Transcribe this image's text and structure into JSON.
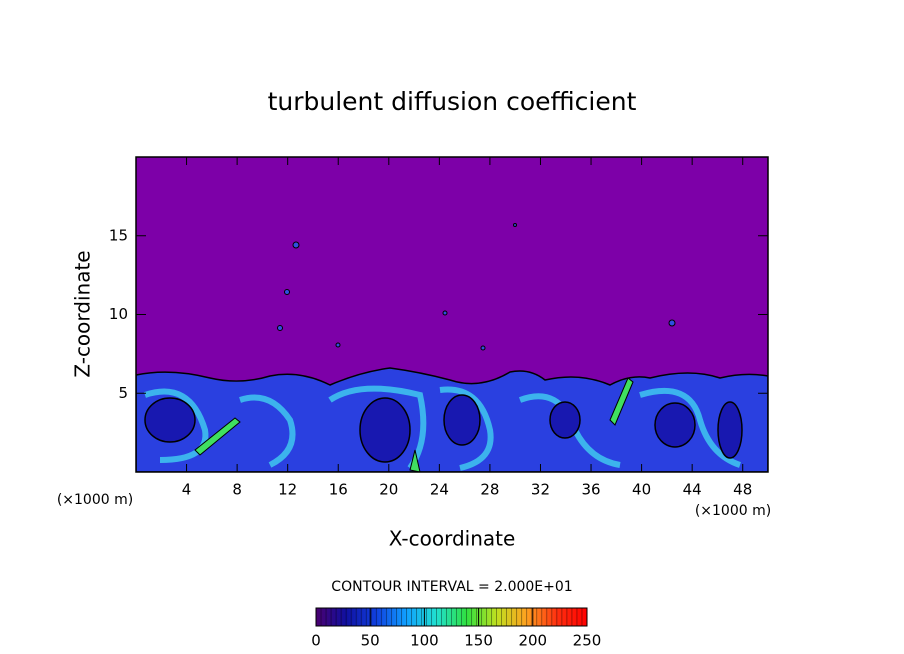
{
  "chart_data": {
    "type": "contour",
    "title": "turbulent diffusion coefficient",
    "x_label": "X-coordinate",
    "y_label": "Z-coordinate",
    "x_unit": "(×1000 m)",
    "y_unit": "(×1000 m)",
    "xlim": [
      0,
      50
    ],
    "xticks": [
      4,
      8,
      12,
      16,
      20,
      24,
      28,
      32,
      36,
      40,
      44,
      48
    ],
    "ylim": [
      0,
      20
    ],
    "yticks": [
      5,
      10,
      15
    ],
    "background_color": "#7d00a8",
    "colorbar": {
      "label": "CONTOUR INTERVAL = 2.000E+01",
      "lim": [
        0,
        250
      ],
      "ticks": [
        0,
        50,
        100,
        150,
        200,
        250
      ],
      "colors": [
        "#4a0070",
        "#1010a0",
        "#1040e0",
        "#10a0ff",
        "#20e0d0",
        "#30e040",
        "#c0e020",
        "#ffa020",
        "#ff3010",
        "#ff0000"
      ]
    }
  }
}
